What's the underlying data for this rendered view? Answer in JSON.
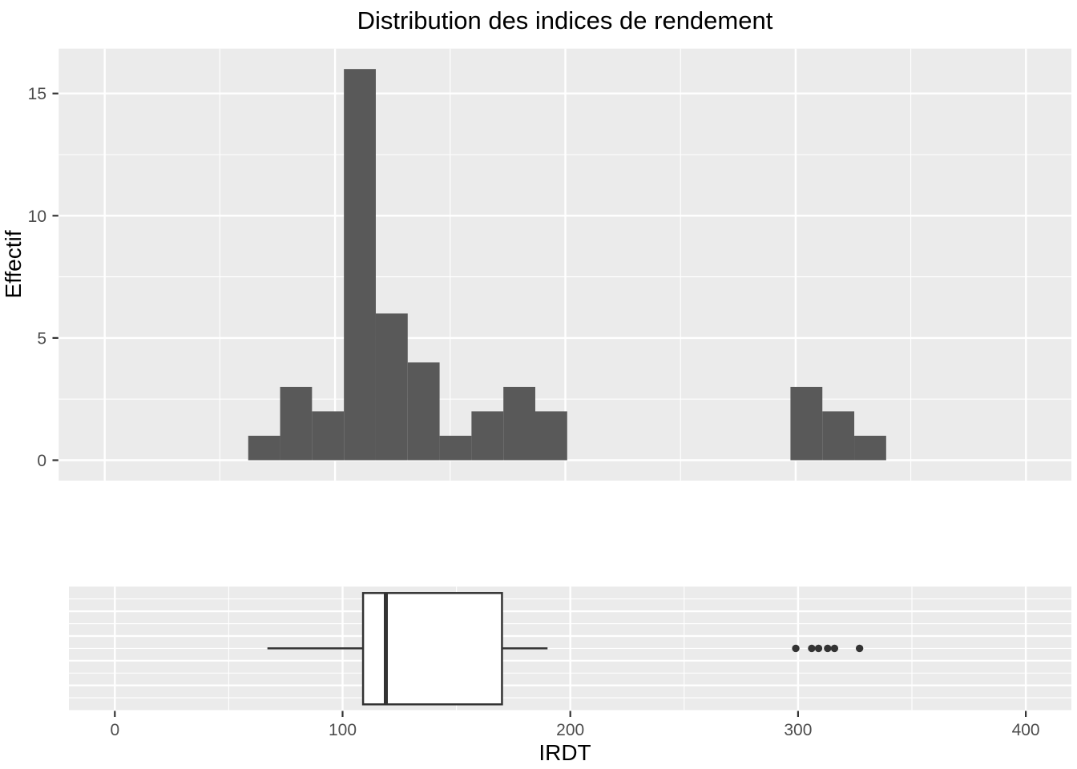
{
  "title": "Distribution des indices de rendement",
  "x_axis_title": "IRDT",
  "y_axis_title": "Effectif",
  "colors": {
    "panel_bg": "#EBEBEB",
    "grid": "#FFFFFF",
    "bar_fill": "#595959",
    "box_fill": "#FFFFFF",
    "box_stroke": "#333333",
    "outlier": "#333333",
    "tick_mark": "#333333",
    "tick_label": "#4D4D4D",
    "title_text": "#000000"
  },
  "chart_data": [
    {
      "type": "bar",
      "subtype": "histogram",
      "title": "Distribution des indices de rendement",
      "xlabel": "IRDT",
      "ylabel": "Effectif",
      "xlim": [
        -20,
        420
      ],
      "ylim": [
        -0.83,
        16.83
      ],
      "x_ticks": [
        0,
        100,
        200,
        300,
        400
      ],
      "x_minor_ticks": [
        50,
        150,
        250,
        350
      ],
      "y_ticks": [
        0,
        5,
        10,
        15
      ],
      "y_minor_ticks": [
        2.5,
        7.5,
        12.5
      ],
      "grid": true,
      "bin_start": 62.3,
      "bin_width": 13.85,
      "counts": [
        1,
        3,
        2,
        16,
        6,
        4,
        1,
        2,
        3,
        2,
        0,
        0,
        0,
        0,
        0,
        0,
        0,
        3,
        2,
        1
      ],
      "n_total": 46
    },
    {
      "type": "boxplot",
      "orientation": "horizontal",
      "xlabel": "IRDT",
      "xlim": [
        -20.2,
        420
      ],
      "x_ticks": [
        0,
        100,
        200,
        300,
        400
      ],
      "x_minor_ticks": [
        50,
        150,
        250,
        350
      ],
      "grid": true,
      "whisker_low": 67,
      "q1": 109,
      "median": 119,
      "q3": 170,
      "whisker_high": 190,
      "outliers": [
        299,
        306,
        309,
        313,
        316,
        327
      ]
    }
  ]
}
